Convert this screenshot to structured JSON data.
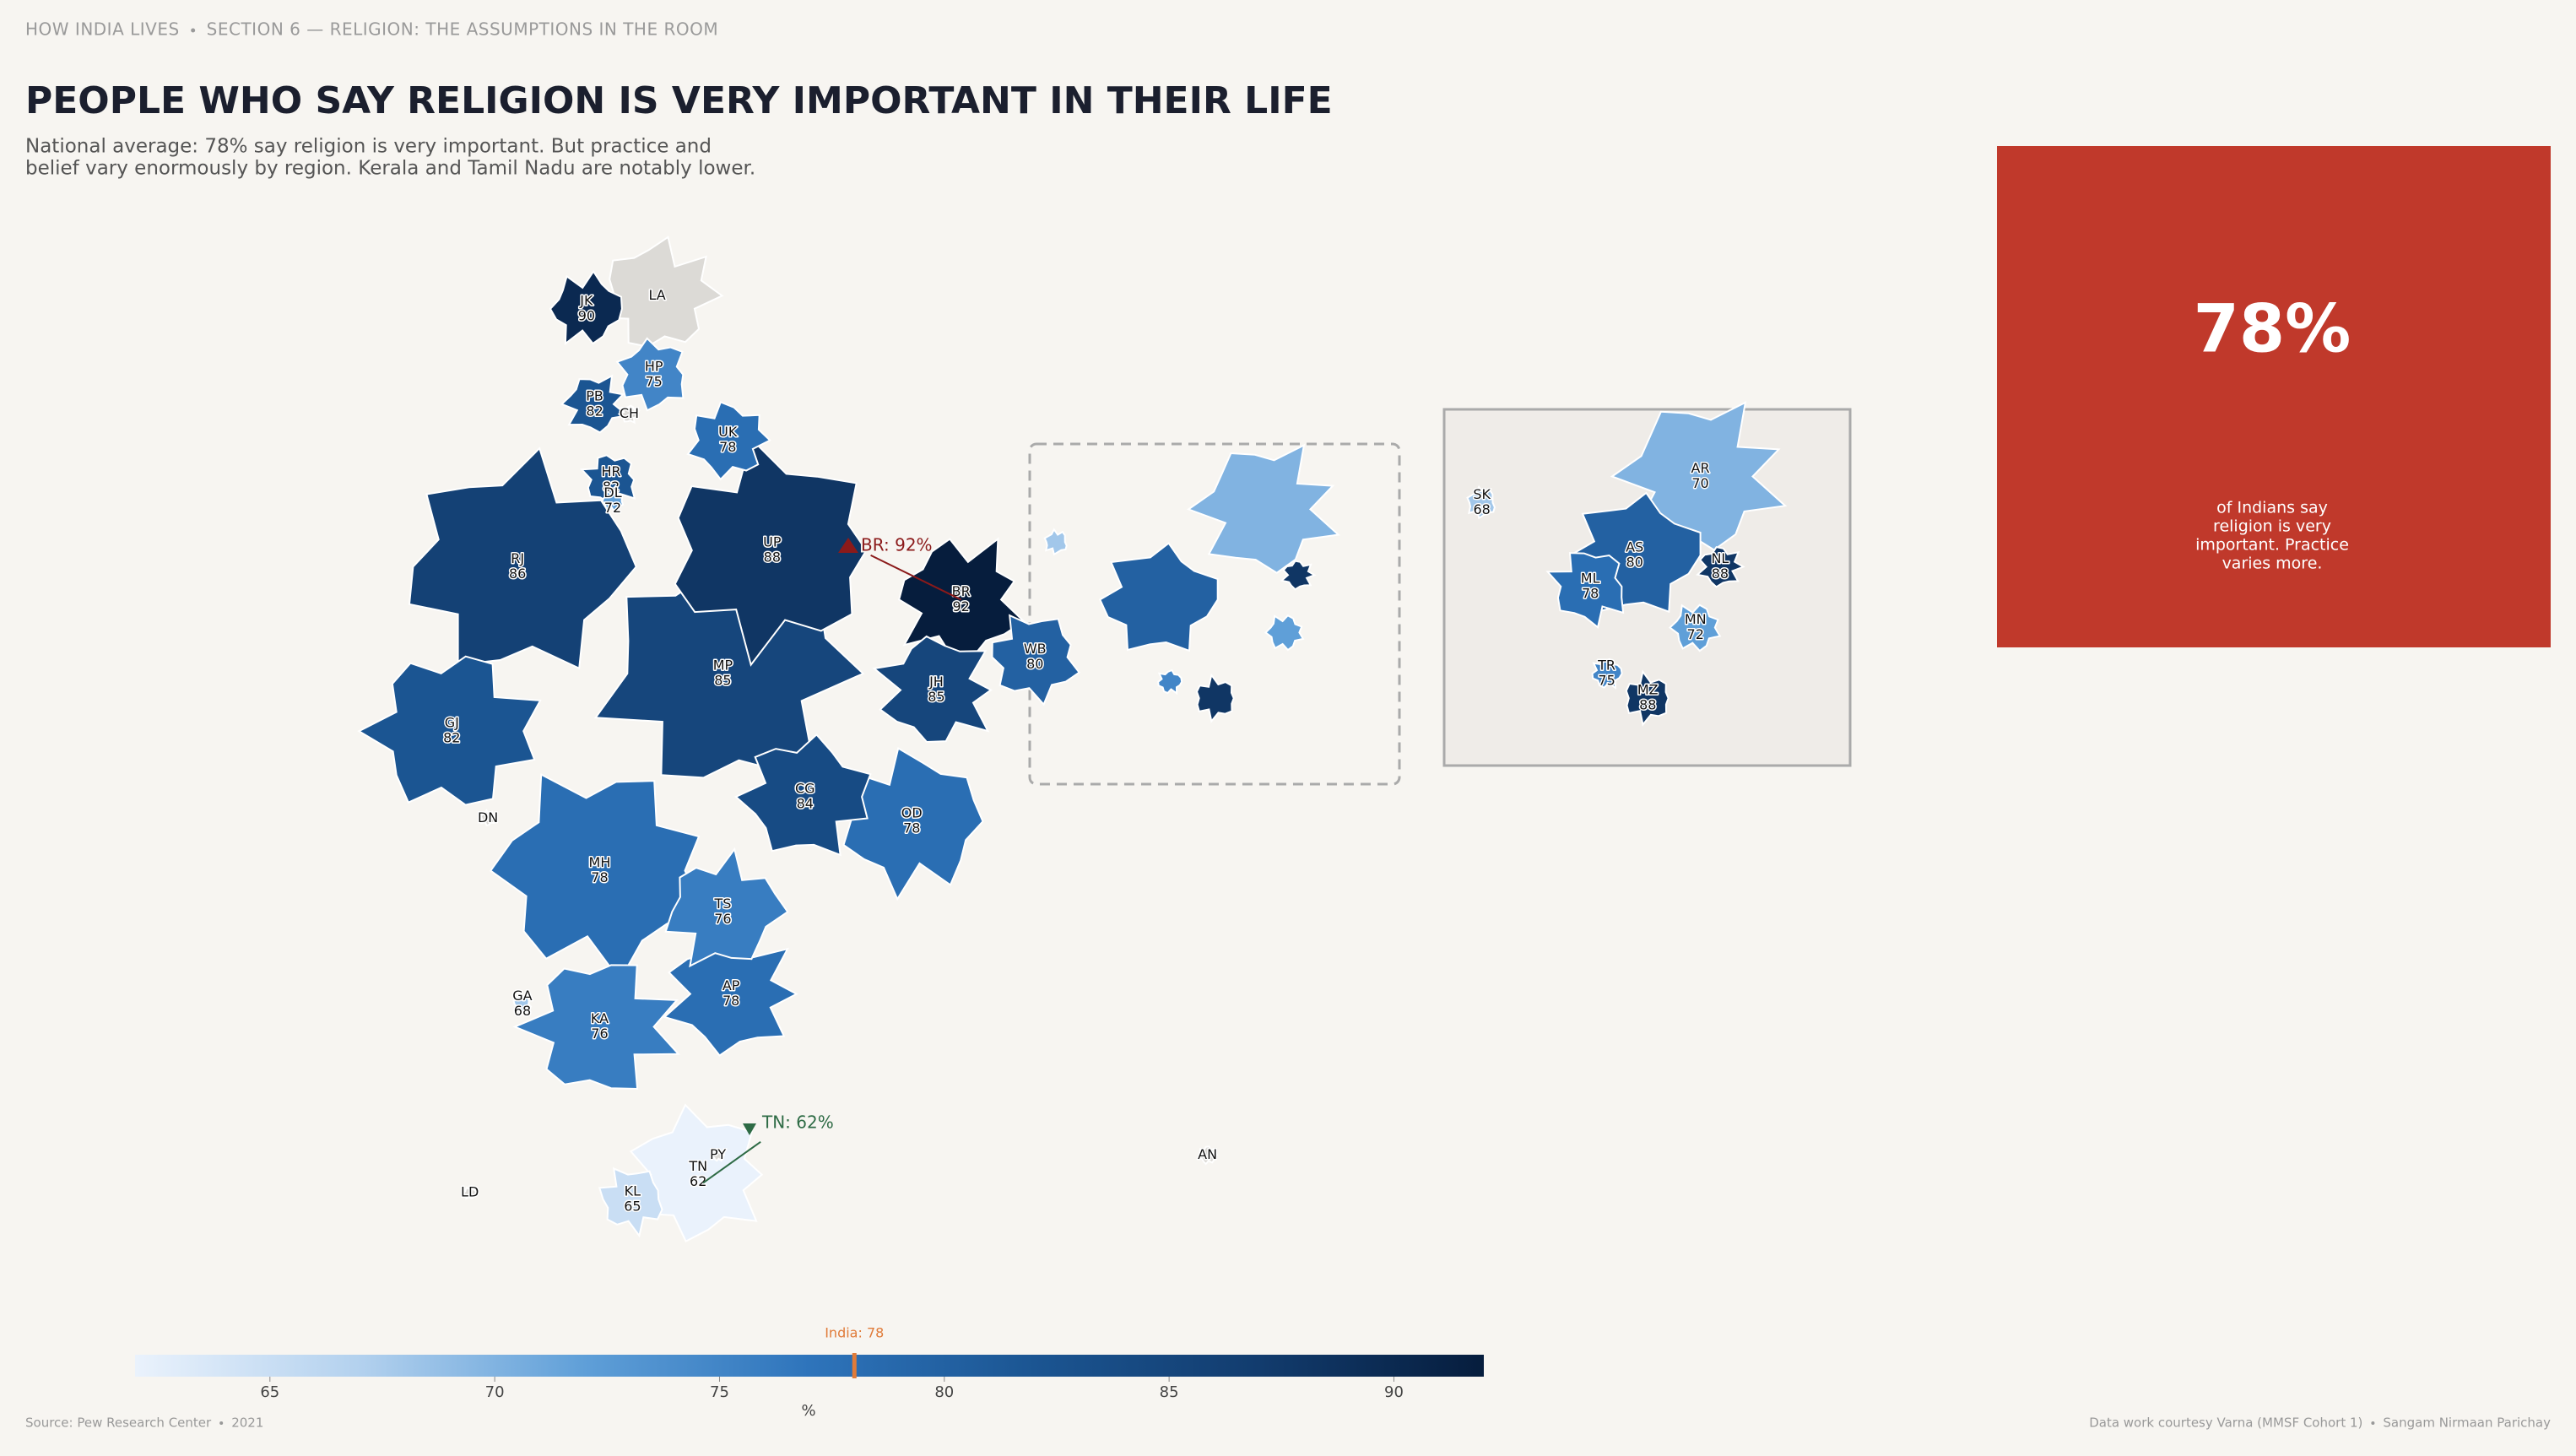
{
  "header": {
    "breadcrumb": [
      "HOW INDIA LIVES",
      "SECTION 6 — RELIGION: THE ASSUMPTIONS IN THE ROOM"
    ]
  },
  "chart_data": {
    "type": "choropleth",
    "title": "PEOPLE WHO SAY RELIGION IS VERY IMPORTANT IN THEIR LIFE",
    "subtitle": [
      "National average: 78% say religion is very important. But practice and",
      "belief vary enormously by region. Kerala and Tamil Nadu are notably lower."
    ],
    "categories": [
      "JK",
      "LA",
      "HP",
      "PB",
      "CH",
      "UK",
      "HR",
      "DL",
      "RJ",
      "UP",
      "BR",
      "GJ",
      "MP",
      "JH",
      "WB",
      "CG",
      "OD",
      "DN",
      "MH",
      "TS",
      "AP",
      "GA",
      "KA",
      "PY",
      "TN",
      "KL",
      "LD",
      "AN",
      "SK",
      "AR",
      "AS",
      "NL",
      "ML",
      "MN",
      "TR",
      "MZ"
    ],
    "values": [
      90,
      null,
      75,
      82,
      null,
      78,
      82,
      72,
      86,
      88,
      92,
      82,
      85,
      85,
      80,
      84,
      78,
      null,
      78,
      76,
      78,
      68,
      76,
      null,
      62,
      65,
      null,
      null,
      68,
      70,
      80,
      88,
      78,
      72,
      75,
      88
    ],
    "color_stops": [
      "#eaf2fc",
      "#b3d1ee",
      "#5f9fd8",
      "#2e74bb",
      "#1b5592",
      "#123c6e",
      "#061d3d"
    ],
    "missing_color": "#dcdad6",
    "xlim": [
      62,
      92
    ],
    "xticks": [
      65,
      70,
      75,
      80,
      85,
      90
    ],
    "xlabel": "%",
    "reference": {
      "value": 78,
      "label": "India: 78",
      "color": "#e07b39"
    },
    "annotations": [
      {
        "text": "BR: 92%",
        "color": "#8b1a1a"
      },
      {
        "text": "TN: 62%",
        "color": "#2e6b45"
      }
    ]
  },
  "callout": {
    "big": "78%",
    "caption": [
      "of Indians say",
      "religion is very",
      "important. Practice",
      "varies more."
    ]
  },
  "footer": {
    "source": [
      "Source: Pew Research Center",
      "2021"
    ],
    "credits": [
      "Data work courtesy Varna (MMSF Cohort 1)",
      "Sangam Nirmaan Parichay"
    ]
  }
}
